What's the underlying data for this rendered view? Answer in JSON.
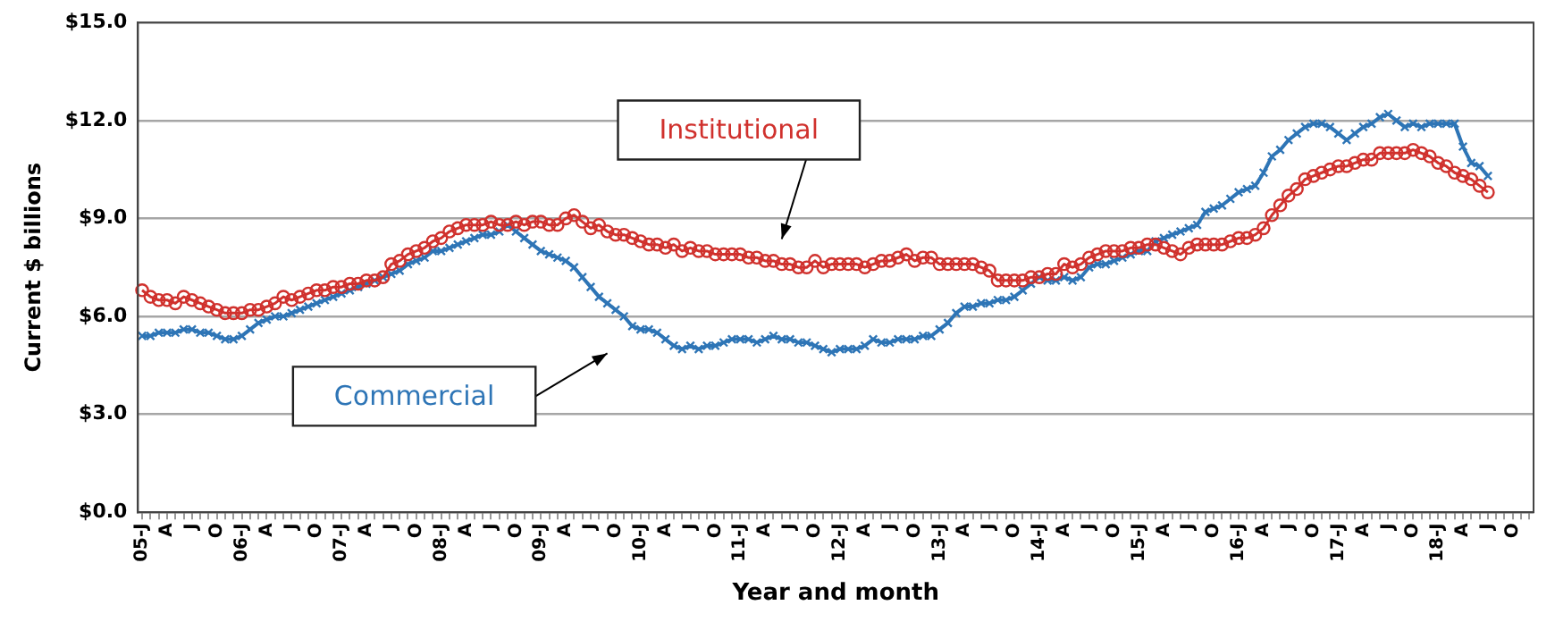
{
  "chart_data": {
    "type": "line",
    "xlabel": "Year and month",
    "ylabel": "Current $ billions",
    "categories": [
      "05-J",
      null,
      null,
      "A",
      null,
      null,
      "J",
      null,
      null,
      "O",
      null,
      null,
      "06-J",
      null,
      null,
      "A",
      null,
      null,
      "J",
      null,
      null,
      "O",
      null,
      null,
      "07-J",
      null,
      null,
      "A",
      null,
      null,
      "J",
      null,
      null,
      "O",
      null,
      null,
      "08-J",
      null,
      null,
      "A",
      null,
      null,
      "J",
      null,
      null,
      "O",
      null,
      null,
      "09-J",
      null,
      null,
      "A",
      null,
      null,
      "J",
      null,
      null,
      "O",
      null,
      null,
      "10-J",
      null,
      null,
      "A",
      null,
      null,
      "J",
      null,
      null,
      "O",
      null,
      null,
      "11-J",
      null,
      null,
      "A",
      null,
      null,
      "J",
      null,
      null,
      "O",
      null,
      null,
      "12-J",
      null,
      null,
      "A",
      null,
      null,
      "J",
      null,
      null,
      "O",
      null,
      null,
      "13-J",
      null,
      null,
      "A",
      null,
      null,
      "J",
      null,
      null,
      "O",
      null,
      null,
      "14-J",
      null,
      null,
      "A",
      null,
      null,
      "J",
      null,
      null,
      "O",
      null,
      null,
      "15-J",
      null,
      null,
      "A",
      null,
      null,
      "J",
      null,
      null,
      "O",
      null,
      null,
      "16-J",
      null,
      null,
      "A",
      null,
      null,
      "J",
      null,
      null,
      "O",
      null,
      null,
      "17-J",
      null,
      null,
      "A",
      null,
      null,
      "J",
      null,
      null,
      "O",
      null,
      null,
      "18-J",
      null,
      null,
      "A",
      null,
      null,
      "J",
      null,
      null,
      "O",
      null,
      null
    ],
    "series": [
      {
        "name": "Commercial",
        "color": "#2e75b6",
        "marker": "cross",
        "values": [
          5.4,
          5.4,
          5.5,
          5.5,
          5.5,
          5.6,
          5.6,
          5.5,
          5.5,
          5.4,
          5.3,
          5.3,
          5.4,
          5.6,
          5.8,
          5.9,
          6.0,
          6.0,
          6.1,
          6.2,
          6.3,
          6.4,
          6.5,
          6.6,
          6.7,
          6.8,
          6.9,
          7.0,
          7.1,
          7.2,
          7.3,
          7.4,
          7.6,
          7.7,
          7.8,
          8.0,
          8.0,
          8.1,
          8.2,
          8.3,
          8.4,
          8.5,
          8.5,
          8.6,
          8.8,
          8.6,
          8.4,
          8.2,
          8.0,
          7.9,
          7.8,
          7.7,
          7.5,
          7.2,
          6.9,
          6.6,
          6.4,
          6.2,
          6.0,
          5.7,
          5.6,
          5.6,
          5.5,
          5.3,
          5.1,
          5.0,
          5.1,
          5.0,
          5.1,
          5.1,
          5.2,
          5.3,
          5.3,
          5.3,
          5.2,
          5.3,
          5.4,
          5.3,
          5.3,
          5.2,
          5.2,
          5.1,
          5.0,
          4.9,
          5.0,
          5.0,
          5.0,
          5.1,
          5.3,
          5.2,
          5.2,
          5.3,
          5.3,
          5.3,
          5.4,
          5.4,
          5.6,
          5.8,
          6.1,
          6.3,
          6.3,
          6.4,
          6.4,
          6.5,
          6.5,
          6.6,
          6.8,
          7.0,
          7.2,
          7.1,
          7.1,
          7.2,
          7.1,
          7.2,
          7.5,
          7.6,
          7.6,
          7.7,
          7.8,
          7.9,
          8.0,
          8.0,
          8.3,
          8.4,
          8.5,
          8.6,
          8.7,
          8.8,
          9.2,
          9.3,
          9.4,
          9.6,
          9.8,
          9.9,
          10.0,
          10.4,
          10.9,
          11.1,
          11.4,
          11.6,
          11.8,
          11.9,
          11.9,
          11.8,
          11.6,
          11.4,
          11.6,
          11.8,
          11.9,
          12.1,
          12.2,
          12.0,
          11.8,
          11.9,
          11.8,
          11.9,
          11.9,
          11.9,
          11.9,
          11.2,
          10.7,
          10.6,
          10.3,
          null,
          null,
          null,
          null,
          null
        ]
      },
      {
        "name": "Institutional",
        "color": "#d0312d",
        "marker": "circle",
        "values": [
          6.8,
          6.6,
          6.5,
          6.5,
          6.4,
          6.6,
          6.5,
          6.4,
          6.3,
          6.2,
          6.1,
          6.1,
          6.1,
          6.2,
          6.2,
          6.3,
          6.4,
          6.6,
          6.5,
          6.6,
          6.7,
          6.8,
          6.8,
          6.9,
          6.9,
          7.0,
          7.0,
          7.1,
          7.1,
          7.2,
          7.6,
          7.7,
          7.9,
          8.0,
          8.1,
          8.3,
          8.4,
          8.6,
          8.7,
          8.8,
          8.8,
          8.8,
          8.9,
          8.8,
          8.8,
          8.9,
          8.8,
          8.9,
          8.9,
          8.8,
          8.8,
          9.0,
          9.1,
          8.9,
          8.7,
          8.8,
          8.6,
          8.5,
          8.5,
          8.4,
          8.3,
          8.2,
          8.2,
          8.1,
          8.2,
          8.0,
          8.1,
          8.0,
          8.0,
          7.9,
          7.9,
          7.9,
          7.9,
          7.8,
          7.8,
          7.7,
          7.7,
          7.6,
          7.6,
          7.5,
          7.5,
          7.7,
          7.5,
          7.6,
          7.6,
          7.6,
          7.6,
          7.5,
          7.6,
          7.7,
          7.7,
          7.8,
          7.9,
          7.7,
          7.8,
          7.8,
          7.6,
          7.6,
          7.6,
          7.6,
          7.6,
          7.5,
          7.4,
          7.1,
          7.1,
          7.1,
          7.1,
          7.2,
          7.2,
          7.3,
          7.3,
          7.6,
          7.5,
          7.6,
          7.8,
          7.9,
          8.0,
          8.0,
          8.0,
          8.1,
          8.1,
          8.2,
          8.2,
          8.1,
          8.0,
          7.9,
          8.1,
          8.2,
          8.2,
          8.2,
          8.2,
          8.3,
          8.4,
          8.4,
          8.5,
          8.7,
          9.1,
          9.4,
          9.7,
          9.9,
          10.2,
          10.3,
          10.4,
          10.5,
          10.6,
          10.6,
          10.7,
          10.8,
          10.8,
          11.0,
          11.0,
          11.0,
          11.0,
          11.1,
          11.0,
          10.9,
          10.7,
          10.6,
          10.4,
          10.3,
          10.2,
          10.0,
          9.8,
          null,
          null,
          null,
          null,
          null
        ]
      }
    ],
    "ylim": [
      0,
      15
    ],
    "yticks": [
      {
        "value": 0,
        "label": "$0.0"
      },
      {
        "value": 3,
        "label": "$3.0"
      },
      {
        "value": 6,
        "label": "$6.0"
      },
      {
        "value": 9,
        "label": "$9.0"
      },
      {
        "value": 12,
        "label": "$12.0"
      },
      {
        "value": 15,
        "label": "$15.0"
      }
    ],
    "grid": "y",
    "legend": false
  }
}
